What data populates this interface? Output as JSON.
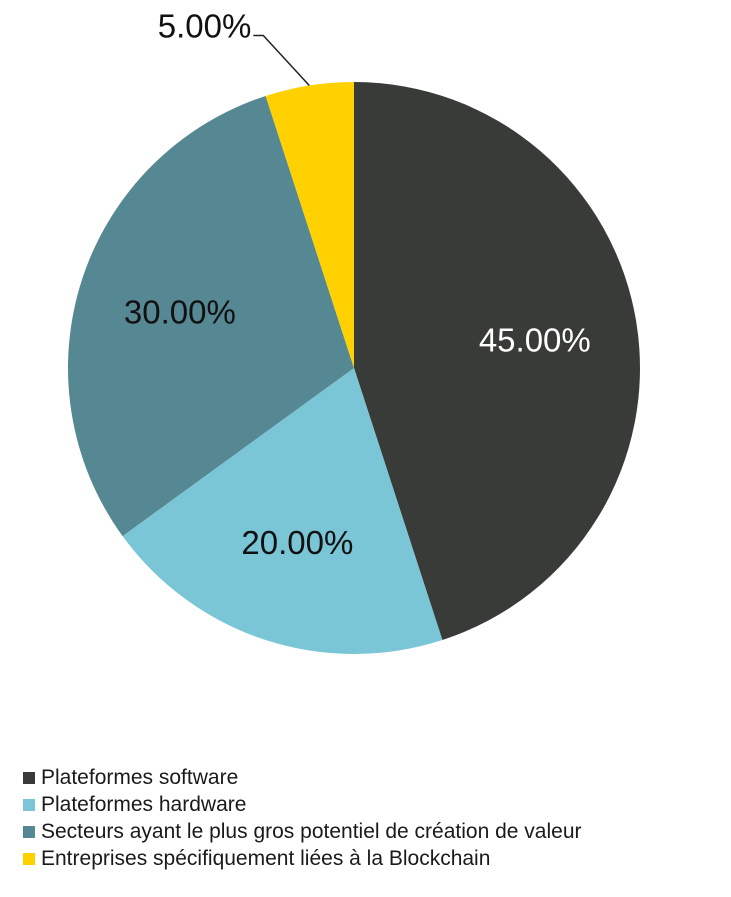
{
  "chart_data": {
    "type": "pie",
    "start_angle": "12 o'clock, clockwise",
    "slices": [
      {
        "label": "Plateformes software",
        "value": 45.0,
        "data_label": "45.00%",
        "color": "#393b38",
        "label_color": "#ffffff"
      },
      {
        "label": "Plateformes hardware",
        "value": 20.0,
        "data_label": "20.00%",
        "color": "#7ac6d6",
        "label_color": "#111111"
      },
      {
        "label": "Secteurs ayant le plus gros potentiel de création de valeur",
        "value": 30.0,
        "data_label": "30.00%",
        "color": "#568893",
        "label_color": "#111111"
      },
      {
        "label": "Entreprises spécifiquement liées à la Blockchain",
        "value": 5.0,
        "data_label": "5.00%",
        "color": "#ffd100",
        "label_color": "#111111"
      }
    ],
    "legend_position": "bottom-left"
  }
}
